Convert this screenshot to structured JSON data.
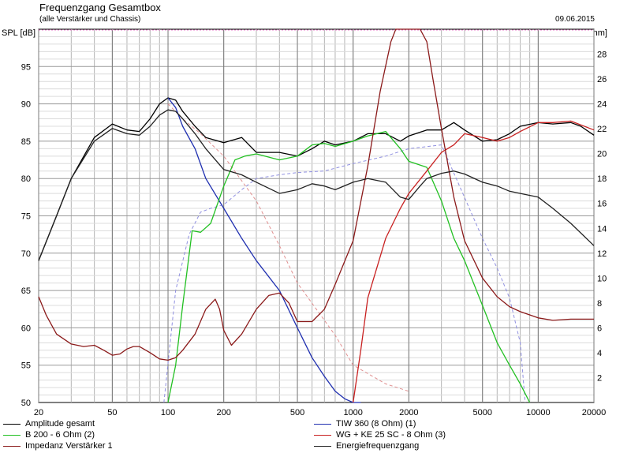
{
  "header": {
    "title": "Frequenzgang Gesamtbox",
    "subtitle": "(alle Verstärker und Chassis)",
    "date": "09.06.2015"
  },
  "chart_data": {
    "type": "line",
    "title": "Frequenzgang Gesamtbox",
    "subtitle": "(alle Verstärker und Chassis)",
    "ylabel": "SPL [dB]",
    "ylabel_right": "Z [Ohm]",
    "xscale": "log",
    "xlim": [
      20,
      20000
    ],
    "ylim": [
      50,
      100
    ],
    "y2lim": [
      0,
      30
    ],
    "grid": true,
    "x_ticks": [
      20,
      50,
      100,
      200,
      500,
      1000,
      2000,
      5000,
      10000,
      20000
    ],
    "y_ticks": [
      50,
      55,
      60,
      65,
      70,
      75,
      80,
      85,
      90,
      95
    ],
    "y2_ticks": [
      2,
      4,
      6,
      8,
      10,
      12,
      14,
      16,
      18,
      20,
      22,
      24,
      26,
      28
    ],
    "legend_placement": "bottom",
    "series": [
      {
        "name": "Amplitude gesamt",
        "axis": "left",
        "color": "#000000",
        "x": [
          20,
          25,
          30,
          40,
          50,
          60,
          70,
          80,
          90,
          100,
          110,
          120,
          140,
          160,
          200,
          250,
          300,
          400,
          500,
          600,
          700,
          800,
          1000,
          1200,
          1500,
          1800,
          2000,
          2500,
          3000,
          3500,
          4000,
          5000,
          6000,
          7000,
          8000,
          10000,
          12000,
          15000,
          17000,
          20000
        ],
        "y": [
          69,
          75,
          80,
          85.5,
          87.3,
          86.5,
          86.3,
          88,
          90,
          90.8,
          90.5,
          89,
          87,
          85.5,
          84.8,
          85.5,
          83.5,
          83.5,
          83,
          84,
          85,
          84.5,
          85,
          86,
          86,
          85,
          85.7,
          86.5,
          86.5,
          87.5,
          86.5,
          85,
          85.2,
          86,
          87,
          87.5,
          87.3,
          87.5,
          87,
          85.8
        ]
      },
      {
        "name": "TIW 360 (8 Ohm) (1)",
        "axis": "left",
        "color": "#1f2fb0",
        "x": [
          100,
          110,
          120,
          140,
          160,
          200,
          250,
          300,
          400,
          500,
          600,
          700,
          800,
          900,
          1000,
          1100
        ],
        "y": [
          90.8,
          89.5,
          87,
          84,
          80,
          76,
          72,
          69,
          65,
          60,
          56,
          53.5,
          51.5,
          50.5,
          50,
          50
        ]
      },
      {
        "name": "B 200 - 6 Ohm (2)",
        "axis": "left",
        "color": "#22c022",
        "x": [
          100,
          110,
          120,
          135,
          150,
          170,
          200,
          230,
          260,
          300,
          400,
          500,
          600,
          700,
          800,
          1000,
          1200,
          1500,
          1800,
          2000,
          2500,
          3000,
          3500,
          4000,
          5000,
          6000,
          7000,
          8000,
          9000
        ],
        "y": [
          50,
          55,
          63,
          73,
          72.8,
          74,
          79,
          82.5,
          83,
          83.3,
          82.5,
          83,
          84.5,
          84.7,
          84.3,
          85,
          85.7,
          86.3,
          84,
          82.3,
          81.5,
          77,
          72,
          69,
          63,
          58,
          55,
          52.5,
          50
        ]
      },
      {
        "name": "WG + KE 25 SC - 8 Ohm (3)",
        "axis": "left",
        "color": "#c82020",
        "x": [
          1000,
          1100,
          1200,
          1500,
          1800,
          2000,
          2500,
          3000,
          3500,
          4000,
          5000,
          6000,
          7000,
          8000,
          10000,
          12000,
          15000,
          20000
        ],
        "y": [
          50,
          57,
          64,
          72,
          76,
          78,
          81,
          83.5,
          84.5,
          86,
          85.5,
          85,
          85.5,
          86.3,
          87.5,
          87.5,
          87.7,
          86.5
        ]
      },
      {
        "name": "Impedanz Verstärker 1",
        "axis": "right",
        "color": "#8b1a1a",
        "x": [
          20,
          22,
          25,
          30,
          35,
          40,
          45,
          50,
          55,
          60,
          65,
          70,
          80,
          90,
          100,
          110,
          120,
          140,
          160,
          180,
          190,
          200,
          220,
          250,
          300,
          350,
          400,
          450,
          500,
          600,
          700,
          800,
          1000,
          1200,
          1400,
          1600,
          1700,
          1800,
          2000,
          2300,
          2500,
          2700,
          3000,
          3500,
          4000,
          5000,
          6000,
          7000,
          8000,
          10000,
          12000,
          15000,
          20000
        ],
        "y": [
          8.5,
          7,
          5.5,
          4.7,
          4.5,
          4.6,
          4.2,
          3.8,
          3.9,
          4.3,
          4.5,
          4.5,
          4,
          3.5,
          3.4,
          3.6,
          4.2,
          5.5,
          7.5,
          8.3,
          7.5,
          5.8,
          4.6,
          5.5,
          7.5,
          8.6,
          8.8,
          8,
          6.5,
          6.5,
          7.5,
          9.5,
          13,
          19,
          25,
          29,
          30,
          30,
          30,
          30,
          29,
          26,
          22,
          16.5,
          13,
          10,
          8.5,
          7.7,
          7.3,
          6.8,
          6.6,
          6.7,
          6.7
        ]
      },
      {
        "name": "Energiefrequenzgang",
        "axis": "left",
        "color": "#222222",
        "x": [
          20,
          25,
          30,
          40,
          50,
          60,
          70,
          80,
          90,
          100,
          110,
          120,
          140,
          160,
          200,
          250,
          300,
          400,
          500,
          600,
          700,
          800,
          1000,
          1200,
          1500,
          1800,
          2000,
          2300,
          2500,
          3000,
          3500,
          4000,
          5000,
          6000,
          7000,
          8000,
          10000,
          12000,
          15000,
          20000
        ],
        "y": [
          69,
          75,
          80,
          85,
          86.7,
          86,
          85.8,
          87,
          88.5,
          89.2,
          89,
          88,
          86,
          84,
          81.2,
          80.5,
          79.5,
          78,
          78.5,
          79.3,
          79,
          78.5,
          79.5,
          80,
          79.5,
          77.5,
          77.2,
          79,
          80,
          80.7,
          81,
          80.6,
          79.5,
          79,
          78.3,
          78,
          77.5,
          76,
          74,
          71
        ]
      }
    ]
  }
}
